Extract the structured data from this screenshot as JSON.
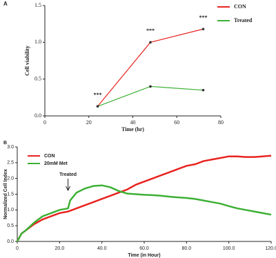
{
  "chart_data": [
    {
      "type": "line",
      "panel_label": "A",
      "xlabel": "Time (hr)",
      "ylabel": "Cell viability",
      "x": [
        24,
        48,
        72
      ],
      "series": [
        {
          "name": "CON",
          "color": "#e8231f",
          "values": [
            0.13,
            1.0,
            1.18
          ]
        },
        {
          "name": "Treated",
          "color": "#3cb034",
          "values": [
            0.13,
            0.4,
            0.35
          ]
        }
      ],
      "annotations": [
        "***",
        "***",
        "***"
      ],
      "xlim": [
        0,
        80
      ],
      "xticks": [
        0,
        20,
        40,
        60,
        80
      ],
      "ylim": [
        0,
        1.5
      ],
      "yticks": [
        {
          "value": 0,
          "label": "0.0"
        },
        0.5,
        {
          "value": 1,
          "label": "1.0"
        },
        1.5
      ]
    },
    {
      "type": "line",
      "panel_label": "B",
      "xlabel": "Time (in Hour)",
      "ylabel": "Normalized Cell Index",
      "series": [
        {
          "name": "CON",
          "color": "#e8231f",
          "x": [
            0,
            2,
            4,
            8,
            12,
            16,
            20,
            24,
            28,
            32,
            36,
            40,
            44,
            48,
            52,
            56,
            60,
            64,
            68,
            72,
            76,
            80,
            84,
            88,
            92,
            96,
            100,
            104,
            108,
            112,
            116,
            120
          ],
          "values": [
            0,
            0.25,
            0.35,
            0.55,
            0.7,
            0.8,
            0.9,
            0.95,
            1.05,
            1.15,
            1.25,
            1.35,
            1.45,
            1.55,
            1.65,
            1.8,
            1.9,
            2.0,
            2.1,
            2.2,
            2.3,
            2.4,
            2.45,
            2.55,
            2.6,
            2.65,
            2.7,
            2.7,
            2.68,
            2.68,
            2.7,
            2.72
          ]
        },
        {
          "name": "20mM Met",
          "color": "#3cb034",
          "x": [
            0,
            2,
            4,
            8,
            12,
            16,
            20,
            24,
            25,
            28,
            32,
            36,
            40,
            44,
            48,
            52,
            56,
            60,
            64,
            68,
            72,
            76,
            80,
            84,
            88,
            92,
            96,
            100,
            104,
            108,
            112,
            116,
            120
          ],
          "values": [
            0,
            0.25,
            0.35,
            0.6,
            0.8,
            0.9,
            1.0,
            1.05,
            1.3,
            1.55,
            1.68,
            1.76,
            1.78,
            1.72,
            1.6,
            1.52,
            1.5,
            1.48,
            1.47,
            1.45,
            1.42,
            1.4,
            1.38,
            1.35,
            1.3,
            1.25,
            1.2,
            1.12,
            1.05,
            1.0,
            0.95,
            0.9,
            0.85
          ]
        }
      ],
      "annotation": {
        "text": "Treated",
        "x": 24
      },
      "xlim": [
        0,
        120
      ],
      "xticks": [
        0,
        {
          "value": 20,
          "label": "20.0"
        },
        {
          "value": 40,
          "label": "40.0"
        },
        {
          "value": 60,
          "label": "60.0"
        },
        {
          "value": 80,
          "label": "80.0"
        },
        {
          "value": 100,
          "label": "100.0"
        },
        {
          "value": 120,
          "label": "120.0"
        }
      ],
      "ylim": [
        0,
        3
      ],
      "yticks": [
        {
          "value": 0,
          "label": "0.0"
        },
        0.5,
        {
          "value": 1,
          "label": "1.0"
        },
        1.5,
        {
          "value": 2,
          "label": "2.0"
        },
        2.5,
        {
          "value": 3,
          "label": "3.0"
        }
      ]
    }
  ]
}
